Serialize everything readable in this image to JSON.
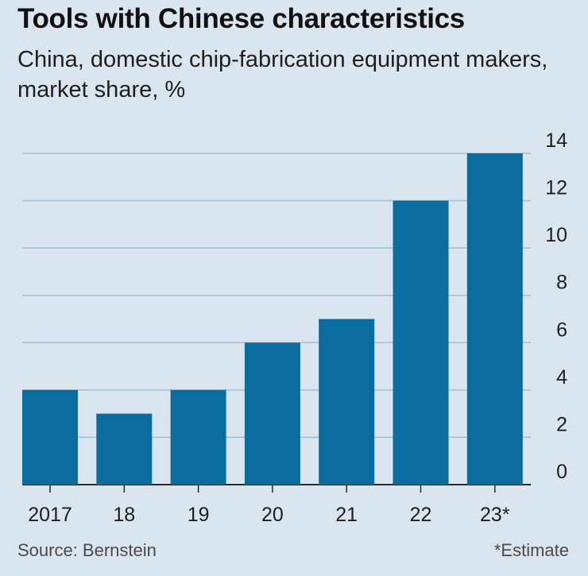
{
  "chart_data": {
    "type": "bar",
    "title": "Tools with Chinese characteristics",
    "subtitle": "China, domestic chip-fabrication equipment makers, market share, %",
    "categories": [
      "2017",
      "18",
      "19",
      "20",
      "21",
      "22",
      "23*"
    ],
    "values": [
      4,
      3,
      4,
      6,
      7,
      12,
      14
    ],
    "ylim": [
      0,
      14
    ],
    "yticks": [
      0,
      2,
      4,
      6,
      8,
      10,
      12,
      14
    ],
    "xlabel": "",
    "ylabel": "",
    "grid": true,
    "y_axis_side": "right",
    "source": "Source: Bernstein",
    "note": "*Estimate",
    "bar_color": "#0b6c9f",
    "grid_color": "#a9bccb",
    "background_color": "#d9e6ef"
  }
}
